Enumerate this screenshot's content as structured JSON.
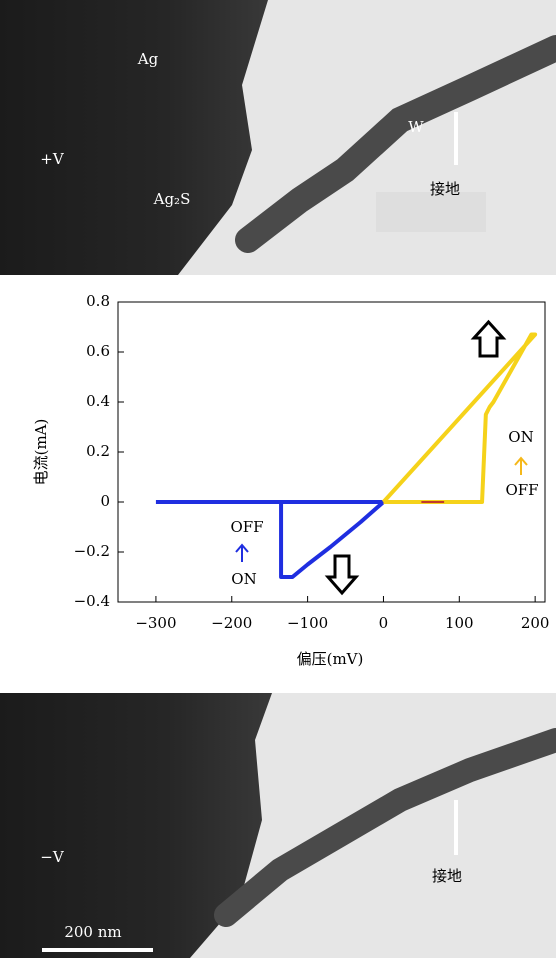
{
  "top_image": {
    "labels": [
      "Ag",
      "+V",
      "Ag₂S",
      "W",
      "接地"
    ]
  },
  "chart_data": {
    "type": "line",
    "xlabel": "偏压(mV)",
    "ylabel": "电流(mA)",
    "xlim": [
      -350,
      213
    ],
    "ylim": [
      -0.4,
      0.8
    ],
    "xticks": [
      {
        "value": -300,
        "label": "−300"
      },
      {
        "value": -200,
        "label": "−200"
      },
      {
        "value": -100,
        "label": "−100"
      },
      0,
      100,
      200
    ],
    "yticks": [
      {
        "value": -0.4,
        "label": "−0.4"
      },
      {
        "value": -0.2,
        "label": "−0.2"
      },
      0,
      0.2,
      0.4,
      0.6,
      0.8
    ],
    "series": [
      {
        "color": "#1f2ee0",
        "x": [
          -300,
          0,
          -30,
          -70,
          -100,
          -120,
          -135,
          -135,
          -300
        ],
        "values": [
          0,
          0,
          -0.08,
          -0.18,
          -0.25,
          -0.3,
          -0.3,
          0,
          0
        ]
      },
      {
        "color": "#f5d21a",
        "x": [
          0,
          130,
          135,
          140,
          145,
          195,
          200,
          0
        ],
        "values": [
          0,
          0,
          0.35,
          0.38,
          0.4,
          0.67,
          0.67,
          0
        ]
      },
      {
        "color": "#c0392b",
        "x": [
          50,
          80
        ],
        "values": [
          0,
          0
        ]
      }
    ],
    "annotations": [
      {
        "text": "OFF",
        "color": "#000000"
      },
      {
        "text": "ON",
        "color": "#000000"
      },
      {
        "text": "ON",
        "color": "#000000"
      },
      {
        "text": "OFF",
        "color": "#000000"
      }
    ]
  },
  "bottom_image": {
    "labels": [
      "−V",
      "接地",
      "200 nm"
    ]
  }
}
